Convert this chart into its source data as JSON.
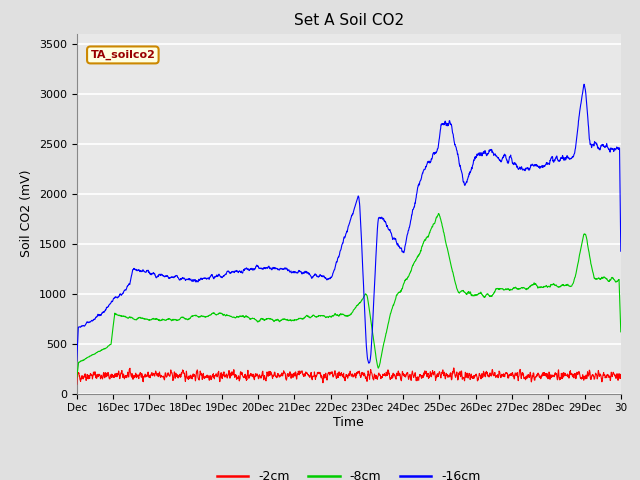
{
  "title": "Set A Soil CO2",
  "ylabel": "Soil CO2 (mV)",
  "xlabel": "Time",
  "legend_label": "TA_soilco2",
  "ylim": [
    0,
    3600
  ],
  "yticks": [
    0,
    500,
    1000,
    1500,
    2000,
    2500,
    3000,
    3500
  ],
  "x_tick_labels": [
    "Dec",
    "16Dec",
    "17Dec",
    "18Dec",
    "19Dec",
    "20Dec",
    "21Dec",
    "22Dec",
    "23Dec",
    "24Dec",
    "25Dec",
    "26Dec",
    "27Dec",
    "28Dec",
    "29Dec",
    "30"
  ],
  "line_colors": {
    "2cm": "#ff0000",
    "8cm": "#00cc00",
    "16cm": "#0000ff"
  },
  "legend_entries": [
    "-2cm",
    "-8cm",
    "-16cm"
  ],
  "fig_bg_color": "#e0e0e0",
  "plot_bg_color": "#e8e8e8",
  "grid_color": "#ffffff",
  "title_fontsize": 11,
  "axis_fontsize": 9,
  "tick_fontsize": 8
}
